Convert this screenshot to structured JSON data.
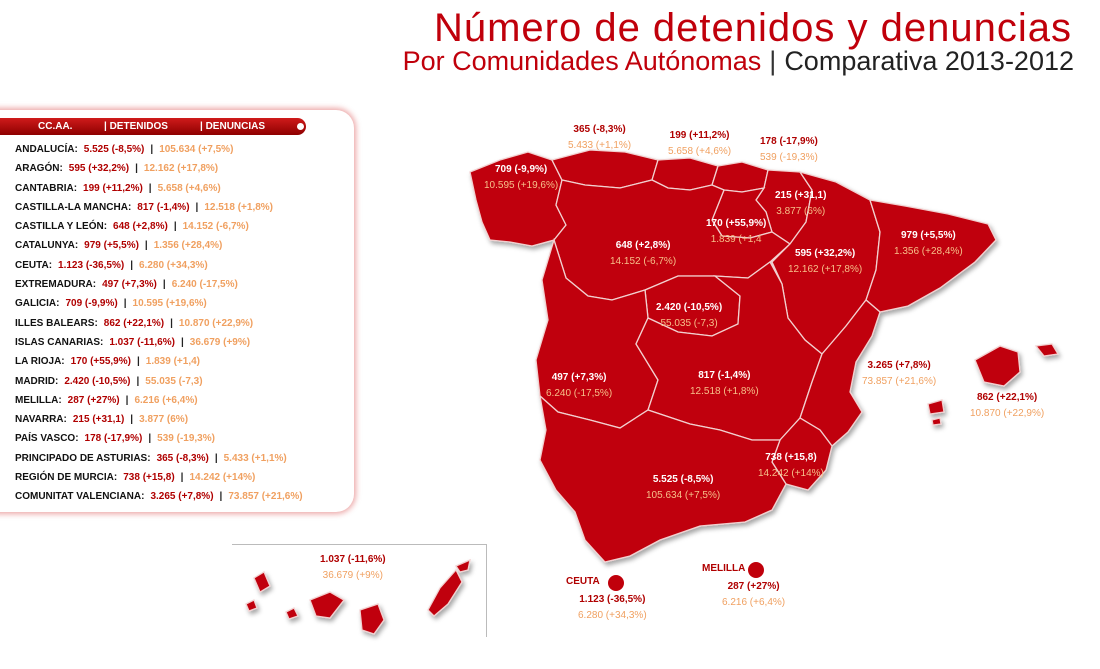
{
  "title": "Número de detenidos y denuncias",
  "subtitle": {
    "part1": "Por Comunidades Autónomas",
    "separator": "|",
    "part2": "Comparativa 2013-2012"
  },
  "table": {
    "headers": [
      "CC.AA.",
      "| DETENIDOS",
      "| DENUNCIAS"
    ],
    "rows": [
      {
        "region": "ANDALUCÍA:",
        "detenidos": "5.525 (-8,5%)",
        "denuncias": "105.634 (+7,5%)"
      },
      {
        "region": "ARAGÓN:",
        "detenidos": "595 (+32,2%)",
        "denuncias": "12.162 (+17,8%)"
      },
      {
        "region": "CANTABRIA:",
        "detenidos": "199 (+11,2%)",
        "denuncias": "5.658 (+4,6%)"
      },
      {
        "region": "CASTILLA-LA MANCHA:",
        "detenidos": "817 (-1,4%)",
        "denuncias": "12.518 (+1,8%)"
      },
      {
        "region": "CASTILLA Y LEÓN:",
        "detenidos": "648 (+2,8%)",
        "denuncias": "14.152 (-6,7%)"
      },
      {
        "region": "CATALUNYA:",
        "detenidos": "979 (+5,5%)",
        "denuncias": "1.356 (+28,4%)"
      },
      {
        "region": "CEUTA:",
        "detenidos": "1.123 (-36,5%)",
        "denuncias": "6.280 (+34,3%)"
      },
      {
        "region": "EXTREMADURA:",
        "detenidos": "497 (+7,3%)",
        "denuncias": "6.240 (-17,5%)"
      },
      {
        "region": "GALICIA:",
        "detenidos": "709 (-9,9%)",
        "denuncias": "10.595 (+19,6%)"
      },
      {
        "region": "ILLES BALEARS:",
        "detenidos": "862 (+22,1%)",
        "denuncias": "10.870 (+22,9%)"
      },
      {
        "region": "ISLAS CANARIAS:",
        "detenidos": "1.037 (-11,6%)",
        "denuncias": "36.679 (+9%)"
      },
      {
        "region": "LA RIOJA:",
        "detenidos": "170 (+55,9%)",
        "denuncias": "1.839 (+1,4)"
      },
      {
        "region": "MADRID:",
        "detenidos": "2.420 (-10,5%)",
        "denuncias": "55.035 (-7,3)"
      },
      {
        "region": "MELILLA:",
        "detenidos": "287 (+27%)",
        "denuncias": "6.216 (+6,4%)"
      },
      {
        "region": "NAVARRA:",
        "detenidos": "215 (+31,1)",
        "denuncias": "3.877 (6%)"
      },
      {
        "region": "PAÍS VASCO:",
        "detenidos": "178 (-17,9%)",
        "denuncias": "539 (-19,3%)"
      },
      {
        "region": "PRINCIPADO DE ASTURIAS:",
        "detenidos": "365 (-8,3%)",
        "denuncias": "5.433 (+1,1%)"
      },
      {
        "region": "REGIÓN DE MURCIA:",
        "detenidos": "738 (+15,8)",
        "denuncias": "14.242 (+14%)"
      },
      {
        "region": "COMUNITAT VALENCIANA:",
        "detenidos": "3.265 (+7,8%)",
        "denuncias": "73.857 (+21,6%)"
      }
    ]
  },
  "map_labels": {
    "asturias": {
      "det": "365 (-8,3%)",
      "den": "5.433 (+1,1%)"
    },
    "cantabria": {
      "det": "199 (+11,2%)",
      "den": "5.658 (+4,6%)"
    },
    "pais_vasco": {
      "det": "178 (-17,9%)",
      "den": "539 (-19,3%)"
    },
    "galicia": {
      "det": "709 (-9,9%)",
      "den": "10.595 (+19,6%)"
    },
    "navarra": {
      "det": "215 (+31,1)",
      "den": "3.877 (6%)"
    },
    "la_rioja": {
      "det": "170 (+55,9%)",
      "den": "1.839 (+1,4"
    },
    "castilla_leon": {
      "det": "648 (+2,8%)",
      "den": "14.152 (-6,7%)"
    },
    "aragon": {
      "det": "595 (+32,2%)",
      "den": "12.162 (+17,8%)"
    },
    "catalunya": {
      "det": "979 (+5,5%)",
      "den": "1.356 (+28,4%)"
    },
    "madrid": {
      "det": "2.420 (-10,5%)",
      "den": "55.035 (-7,3)"
    },
    "extremadura": {
      "det": "497 (+7,3%)",
      "den": "6.240 (-17,5%)"
    },
    "castilla_mancha": {
      "det": "817 (-1,4%)",
      "den": "12.518 (+1,8%)"
    },
    "valencia": {
      "det": "3.265 (+7,8%)",
      "den": "73.857 (+21,6%)"
    },
    "baleares": {
      "det": "862 (+22,1%)",
      "den": "10.870 (+22,9%)"
    },
    "murcia": {
      "det": "738 (+15,8)",
      "den": "14.242 (+14%)"
    },
    "andalucia": {
      "det": "5.525 (-8,5%)",
      "den": "105.634 (+7,5%)"
    },
    "canarias": {
      "det": "1.037 (-11,6%)",
      "den": "36.679 (+9%)"
    },
    "ceuta": {
      "name": "CEUTA",
      "det": "1.123 (-36,5%)",
      "den": "6.280 (+34,3%)"
    },
    "melilla": {
      "name": "MELILLA",
      "det": "287 (+27%)",
      "den": "6.216 (+6,4%)"
    }
  },
  "colors": {
    "region_fill": "#c0000b",
    "border": "#f2d0d0",
    "accent_orange": "#f0a060"
  }
}
